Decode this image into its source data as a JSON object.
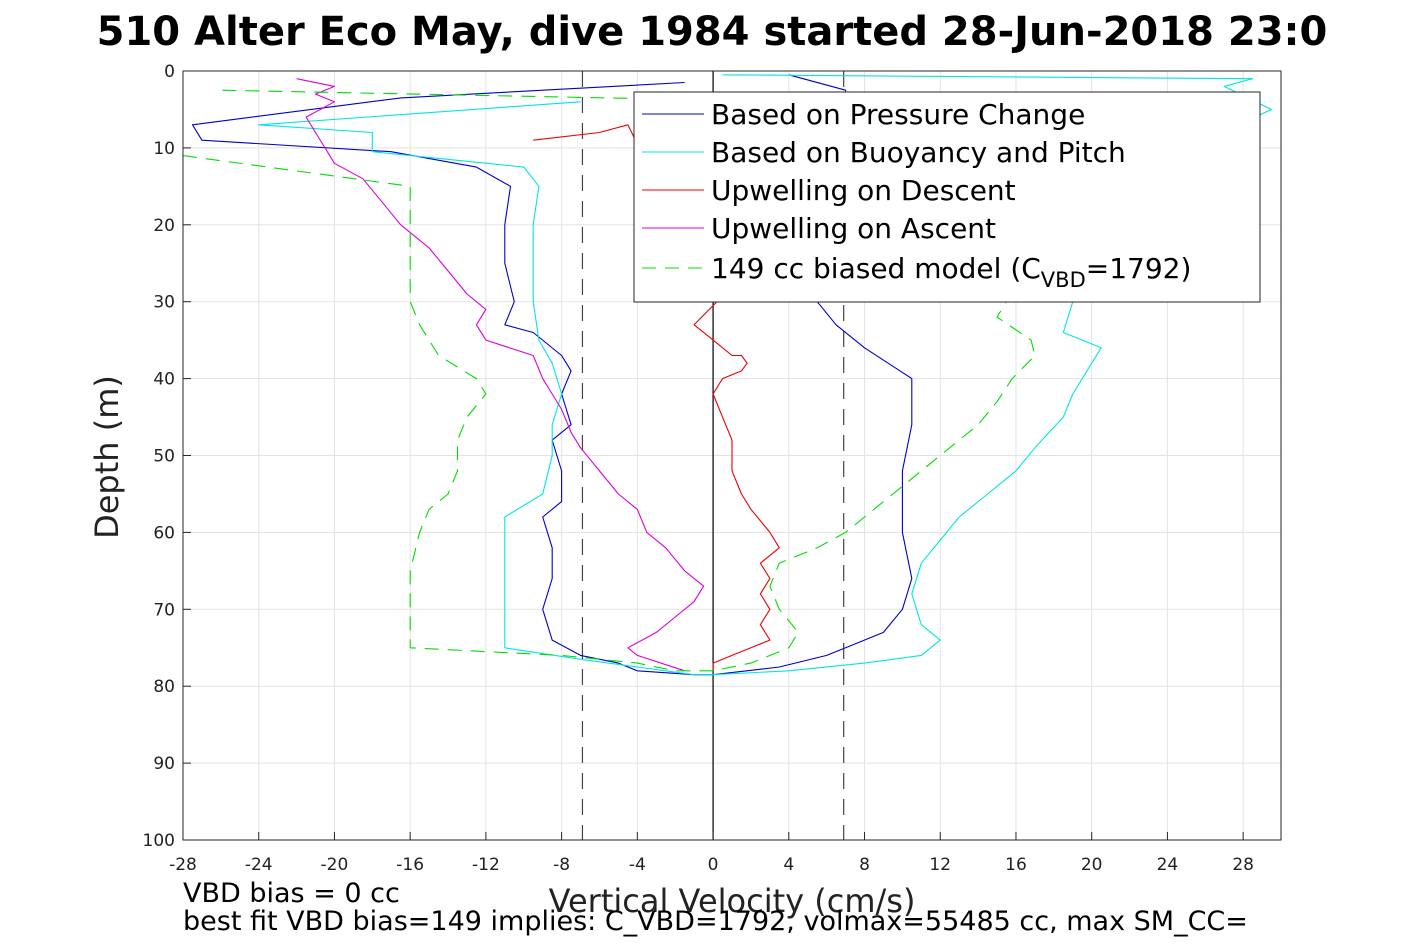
{
  "chart_data": {
    "type": "line",
    "title": "510 Alter Eco May, dive 1984 started 28-Jun-2018 23:0",
    "xlabel": "Vertical Velocity (cm/s)",
    "ylabel": "Depth (m)",
    "xlim": [
      -28,
      30
    ],
    "ylim": [
      0,
      100
    ],
    "y_reversed": true,
    "grid": true,
    "xticks": [
      -28,
      -24,
      -20,
      -16,
      -12,
      -8,
      -4,
      0,
      4,
      8,
      12,
      16,
      20,
      24,
      28
    ],
    "yticks": [
      0,
      10,
      20,
      30,
      40,
      50,
      60,
      70,
      80,
      90,
      100
    ],
    "legend_position": "top-right",
    "reference_lines": [
      {
        "x": -6.9,
        "style": "dash",
        "color": "#444444"
      },
      {
        "x": 0,
        "style": "solid",
        "color": "#000000"
      },
      {
        "x": 6.9,
        "style": "dash",
        "color": "#444444"
      }
    ],
    "series": [
      {
        "name": "Based on Pressure Change",
        "color": "#0000cc",
        "style": "solid",
        "points": [
          [
            -1.5,
            1.5
          ],
          [
            -16.5,
            3.5
          ],
          [
            -27.5,
            7
          ],
          [
            -27,
            9
          ],
          [
            -17,
            10.5
          ],
          [
            -12.5,
            12.5
          ],
          [
            -10.7,
            15
          ],
          [
            -11,
            20
          ],
          [
            -11,
            25
          ],
          [
            -10.5,
            30
          ],
          [
            -11,
            33
          ],
          [
            -9.5,
            34
          ],
          [
            -8,
            37
          ],
          [
            -7.5,
            39
          ],
          [
            -8,
            42
          ],
          [
            -7.5,
            46
          ],
          [
            -8.5,
            48
          ],
          [
            -8,
            52
          ],
          [
            -8,
            56
          ],
          [
            -9,
            58
          ],
          [
            -8.5,
            62
          ],
          [
            -8.5,
            66
          ],
          [
            -9,
            70
          ],
          [
            -8.5,
            74
          ],
          [
            -7,
            76
          ],
          [
            -5,
            77
          ],
          [
            -4,
            78
          ],
          [
            -1,
            78.5
          ],
          [
            0,
            78.5
          ],
          [
            3.5,
            77.5
          ],
          [
            6,
            76
          ],
          [
            7,
            75
          ],
          [
            9,
            73
          ],
          [
            10,
            70
          ],
          [
            10.5,
            66
          ],
          [
            10,
            60
          ],
          [
            10,
            52
          ],
          [
            10.5,
            46
          ],
          [
            10.5,
            40
          ],
          [
            8,
            36
          ],
          [
            6.5,
            33
          ],
          [
            5.5,
            30
          ],
          [
            6,
            25
          ],
          [
            5.5,
            20
          ],
          [
            6,
            15
          ],
          [
            6.5,
            10
          ],
          [
            7,
            5
          ],
          [
            7,
            2.5
          ],
          [
            4,
            0.5
          ]
        ]
      },
      {
        "name": "Based on Buoyancy and Pitch",
        "color": "#00e5e5",
        "style": "solid",
        "points": [
          [
            -7,
            4
          ],
          [
            -24,
            7
          ],
          [
            -18,
            8
          ],
          [
            -18,
            10.5
          ],
          [
            -10,
            12.5
          ],
          [
            -9.2,
            15
          ],
          [
            -9.5,
            20
          ],
          [
            -9.5,
            25
          ],
          [
            -9.5,
            30
          ],
          [
            -9.2,
            35
          ],
          [
            -8.5,
            38
          ],
          [
            -8,
            42
          ],
          [
            -8.5,
            46
          ],
          [
            -8.5,
            50
          ],
          [
            -9,
            55
          ],
          [
            -11,
            58
          ],
          [
            -11,
            62
          ],
          [
            -11,
            66
          ],
          [
            -11,
            70
          ],
          [
            -11,
            75
          ],
          [
            -7,
            76.5
          ],
          [
            -4,
            77.5
          ],
          [
            -1,
            78.5
          ],
          [
            0,
            78.5
          ],
          [
            4,
            78
          ],
          [
            8,
            77
          ],
          [
            11,
            76
          ],
          [
            12,
            74
          ],
          [
            11,
            72
          ],
          [
            10.5,
            68
          ],
          [
            11,
            64
          ],
          [
            12,
            61
          ],
          [
            13,
            58
          ],
          [
            14.5,
            55
          ],
          [
            16,
            52
          ],
          [
            17,
            49
          ],
          [
            18.5,
            45
          ],
          [
            19,
            42
          ],
          [
            20.5,
            36
          ],
          [
            18.5,
            34
          ],
          [
            19,
            30
          ],
          [
            20,
            25
          ],
          [
            21,
            20
          ],
          [
            23,
            15
          ],
          [
            25,
            10
          ],
          [
            29.5,
            5
          ],
          [
            27,
            2
          ],
          [
            28.5,
            1
          ],
          [
            0.5,
            0.5
          ]
        ]
      },
      {
        "name": "Upwelling on Descent",
        "color": "#ee0000",
        "style": "solid",
        "points": [
          [
            -9.5,
            9
          ],
          [
            -6,
            8
          ],
          [
            -4.5,
            7
          ],
          [
            -4,
            9.5
          ],
          [
            -1,
            10
          ],
          [
            0.5,
            15
          ],
          [
            0.5,
            20
          ],
          [
            0,
            25
          ],
          [
            0.2,
            30
          ],
          [
            -1,
            33
          ],
          [
            0,
            35
          ],
          [
            1,
            37
          ],
          [
            1.5,
            37
          ],
          [
            1.8,
            38
          ],
          [
            1.5,
            39
          ],
          [
            0.5,
            40
          ],
          [
            0,
            42
          ],
          [
            0.5,
            45
          ],
          [
            1,
            48
          ],
          [
            1,
            52
          ],
          [
            1.5,
            55
          ],
          [
            2,
            57
          ],
          [
            3,
            60
          ],
          [
            3.5,
            62
          ],
          [
            2.5,
            64
          ],
          [
            3,
            66
          ],
          [
            2.5,
            68
          ],
          [
            3,
            70
          ],
          [
            2.5,
            72
          ],
          [
            3,
            74
          ],
          [
            2,
            75
          ],
          [
            1,
            76
          ],
          [
            0,
            77
          ],
          [
            0,
            78
          ]
        ]
      },
      {
        "name": "Upwelling on Ascent",
        "color": "#dd00dd",
        "style": "solid",
        "points": [
          [
            -1.5,
            78
          ],
          [
            -4,
            76
          ],
          [
            -4.5,
            75
          ],
          [
            -3,
            73
          ],
          [
            -2,
            71
          ],
          [
            -1,
            69
          ],
          [
            -0.5,
            67
          ],
          [
            -1.5,
            65
          ],
          [
            -2.5,
            62
          ],
          [
            -3.5,
            60
          ],
          [
            -4,
            57
          ],
          [
            -5,
            55
          ],
          [
            -6,
            52
          ],
          [
            -7,
            49
          ],
          [
            -7.5,
            47
          ],
          [
            -8,
            44
          ],
          [
            -8.5,
            42
          ],
          [
            -9,
            40
          ],
          [
            -9.5,
            37
          ],
          [
            -12,
            35
          ],
          [
            -12.5,
            33
          ],
          [
            -12,
            31
          ],
          [
            -13,
            29
          ],
          [
            -14,
            26
          ],
          [
            -15,
            23
          ],
          [
            -16.5,
            20
          ],
          [
            -17.5,
            17
          ],
          [
            -18.5,
            14
          ],
          [
            -20,
            12
          ],
          [
            -20.5,
            10
          ],
          [
            -21,
            8
          ],
          [
            -21.5,
            6
          ],
          [
            -20,
            4
          ],
          [
            -21,
            3
          ],
          [
            -20,
            2
          ],
          [
            -22,
            1
          ]
        ]
      },
      {
        "name": "149 cc biased model (CVBD=1792)",
        "legend_main": "149 cc biased model (C",
        "legend_sub": "VBD",
        "legend_tail": "=1792)",
        "color": "#00dd00",
        "style": "dash",
        "points": [
          [
            -29,
            11
          ],
          [
            -16,
            15
          ],
          [
            -16,
            20
          ],
          [
            -16,
            25
          ],
          [
            -16,
            30
          ],
          [
            -15.5,
            33
          ],
          [
            -14.5,
            37
          ],
          [
            -12.5,
            40
          ],
          [
            -12,
            42
          ],
          [
            -13,
            45
          ],
          [
            -13.5,
            48
          ],
          [
            -13.5,
            52
          ],
          [
            -14,
            55
          ],
          [
            -15,
            57
          ],
          [
            -15.5,
            60
          ],
          [
            -16,
            65
          ],
          [
            -16,
            70
          ],
          [
            -16,
            75
          ],
          [
            -8,
            76
          ],
          [
            -4,
            77
          ],
          [
            -2,
            78
          ],
          [
            0,
            78
          ],
          [
            2,
            77
          ],
          [
            4,
            75
          ],
          [
            4.5,
            73
          ],
          [
            3.5,
            70
          ],
          [
            3,
            67
          ],
          [
            3.5,
            64
          ],
          [
            5.5,
            62
          ],
          [
            7,
            60
          ],
          [
            8,
            58
          ],
          [
            9.5,
            55
          ],
          [
            11,
            52
          ],
          [
            12.5,
            49
          ],
          [
            14,
            46
          ],
          [
            15,
            43
          ],
          [
            15.8,
            40
          ],
          [
            17,
            37
          ],
          [
            16.8,
            35
          ],
          [
            15,
            32
          ],
          [
            16,
            28
          ],
          [
            18,
            25
          ],
          [
            20,
            20
          ],
          [
            22,
            15
          ],
          [
            24,
            10
          ],
          [
            25,
            5
          ],
          [
            -26,
            2.5
          ]
        ]
      }
    ],
    "notes": [
      "VBD bias = 0 cc",
      "best fit VBD bias=149 implies: C_VBD=1792, volmax=55485 cc, max SM_CC="
    ]
  }
}
